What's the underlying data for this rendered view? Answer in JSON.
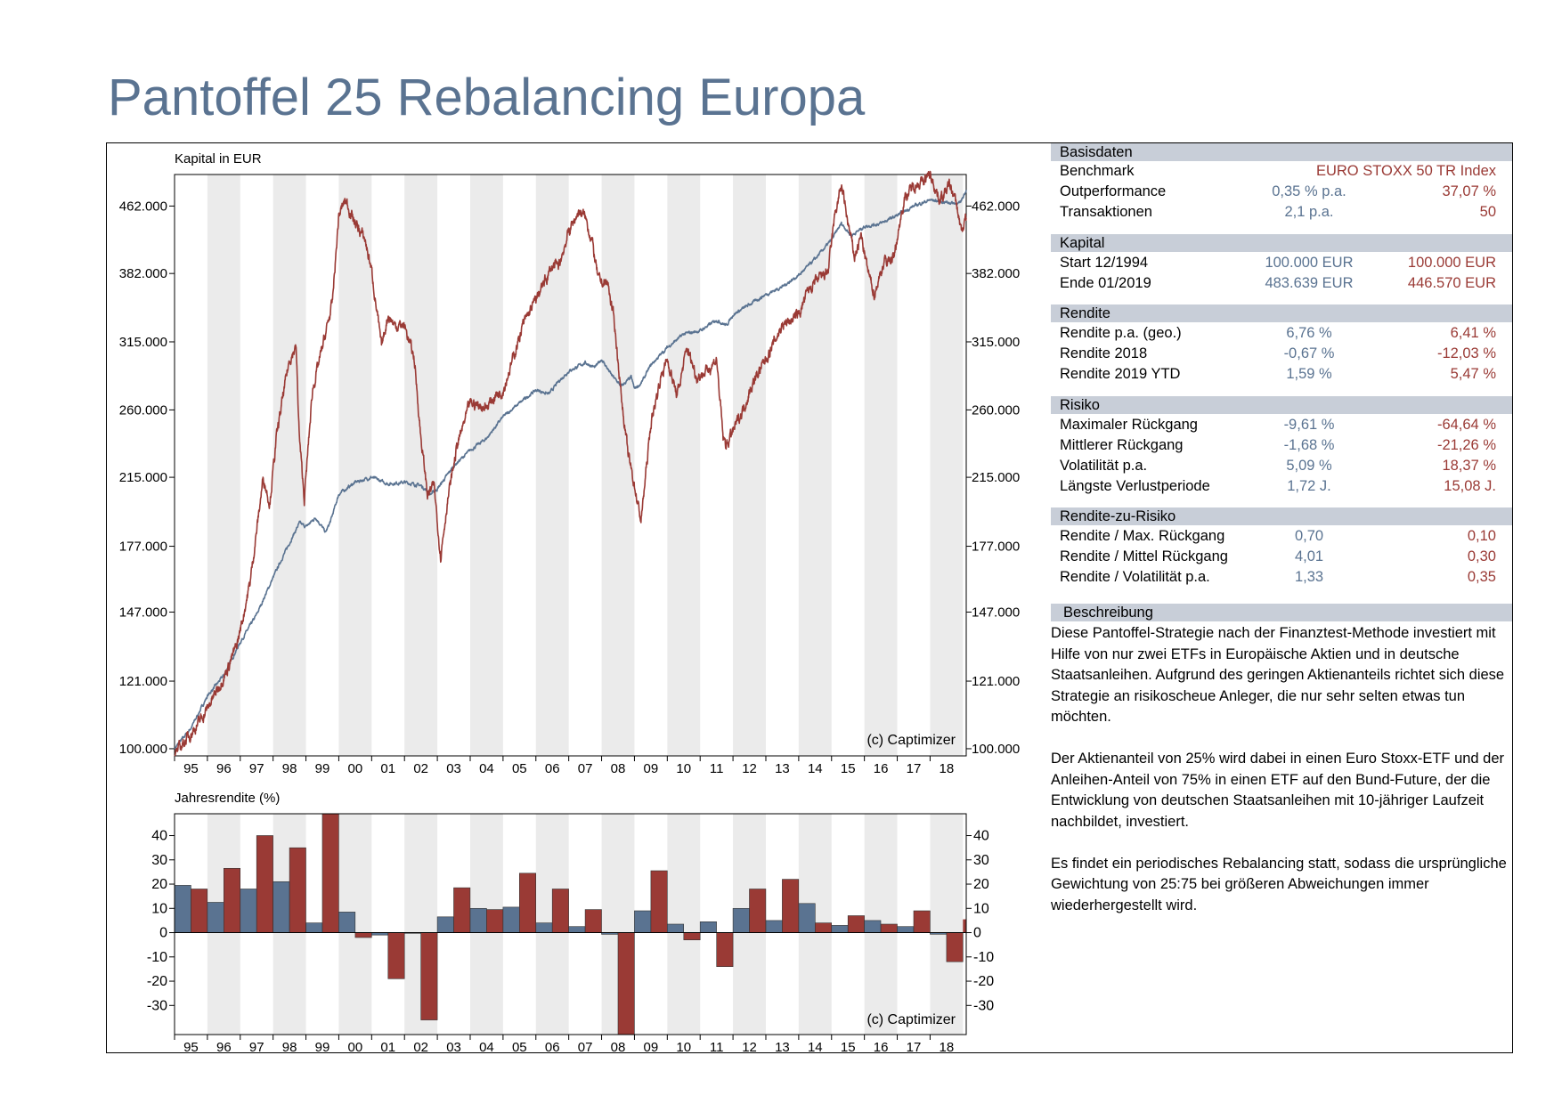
{
  "title": "Pantoffel 25 Rebalancing Europa",
  "colors": {
    "strategy": "#5a7391",
    "benchmark": "#9a3a35",
    "band": "#ebebeb",
    "header": "#c8ced8",
    "title": "#5a7391"
  },
  "panel": {
    "basisdaten": {
      "header": "Basisdaten",
      "benchmark_label": "Benchmark",
      "benchmark_value": "EURO STOXX 50 TR Index",
      "rows": [
        {
          "label": "Outperformance",
          "v1": "0,35 % p.a.",
          "v2": "37,07 %"
        },
        {
          "label": "Transaktionen",
          "v1": "2,1 p.a.",
          "v2": "50"
        }
      ]
    },
    "kapital": {
      "header": "Kapital",
      "rows": [
        {
          "label": "Start  12/1994",
          "v1": "100.000 EUR",
          "v2": "100.000 EUR"
        },
        {
          "label": "Ende 01/2019",
          "v1": "483.639 EUR",
          "v2": "446.570 EUR"
        }
      ]
    },
    "rendite": {
      "header": "Rendite",
      "rows": [
        {
          "label": "Rendite p.a. (geo.)",
          "v1": "6,76 %",
          "v2": "6,41 %"
        },
        {
          "label": "Rendite 2018",
          "v1": "-0,67 %",
          "v2": "-12,03 %"
        },
        {
          "label": "Rendite 2019 YTD",
          "v1": "1,59 %",
          "v2": "5,47 %"
        }
      ]
    },
    "risiko": {
      "header": "Risiko",
      "rows": [
        {
          "label": "Maximaler Rückgang",
          "v1": "-9,61 %",
          "v2": "-64,64 %"
        },
        {
          "label": "Mittlerer Rückgang",
          "v1": "-1,68 %",
          "v2": "-21,26 %"
        },
        {
          "label": "Volatilität p.a.",
          "v1": "5,09 %",
          "v2": "18,37 %"
        },
        {
          "label": "Längste Verlustperiode",
          "v1": "1,72 J.",
          "v2": "15,08 J."
        }
      ]
    },
    "rzr": {
      "header": "Rendite-zu-Risiko",
      "rows": [
        {
          "label": "Rendite / Max. Rückgang",
          "v1": "0,70",
          "v2": "0,10"
        },
        {
          "label": "Rendite / Mittel Rückgang",
          "v1": "4,01",
          "v2": "0,30"
        },
        {
          "label": "Rendite / Volatilität p.a.",
          "v1": "1,33",
          "v2": "0,35"
        }
      ]
    },
    "beschreibung": {
      "header": "Beschreibung",
      "paragraphs": [
        "Diese Pantoffel-Strategie nach der Finanztest-Methode investiert mit Hilfe von nur zwei ETFs in Europäische Aktien und in deutsche Staatsanleihen. Aufgrund des geringen Aktienanteils richtet sich diese Strategie an risikoscheue Anleger, die nur sehr selten etwas tun möchten.",
        "Der Aktienanteil von 25% wird dabei in einen Euro Stoxx-ETF und der Anleihen-Anteil von 75% in einen ETF auf den Bund-Future, der die Entwicklung von deutschen Staatsanleihen mit 10-jähriger Laufzeit nachbildet, investiert.",
        "Es findet ein periodisches Rebalancing statt, sodass die ursprüngliche Gewichtung von 25:75 bei größeren Abweichungen immer wiederhergestellt wird."
      ]
    }
  },
  "chart_data": [
    {
      "type": "line",
      "ylabel": "Kapital in EUR",
      "watermark": "(c) Captimizer",
      "x_tick_labels": [
        "95",
        "96",
        "97",
        "98",
        "99",
        "00",
        "01",
        "02",
        "03",
        "04",
        "05",
        "06",
        "07",
        "08",
        "09",
        "10",
        "11",
        "12",
        "13",
        "14",
        "15",
        "16",
        "17",
        "18"
      ],
      "y_tick_values": [
        100000,
        121000,
        147000,
        177000,
        215000,
        260000,
        315000,
        382000,
        462000
      ],
      "y_tick_labels": [
        "100.000",
        "121.000",
        "147.000",
        "177.000",
        "215.000",
        "260.000",
        "315.000",
        "382.000",
        "462.000"
      ],
      "y_scale": "log",
      "xlim": [
        1995.0,
        2019.1
      ],
      "ylim": [
        98000,
        505000
      ],
      "series": [
        {
          "color": "#5a7391",
          "x": [
            1995.0,
            1995.5,
            1996.0,
            1996.5,
            1997.0,
            1997.5,
            1998.0,
            1998.3,
            1998.6,
            1998.8,
            1999.0,
            1999.3,
            1999.6,
            1999.75,
            2000.0,
            2000.5,
            2001.0,
            2001.5,
            2002.0,
            2002.5,
            2002.8,
            2003.0,
            2003.5,
            2004.0,
            2004.5,
            2005.0,
            2005.5,
            2006.0,
            2006.4,
            2006.7,
            2007.0,
            2007.5,
            2007.8,
            2008.0,
            2008.3,
            2008.6,
            2008.9,
            2009.0,
            2009.2,
            2009.5,
            2010.0,
            2010.5,
            2011.0,
            2011.5,
            2011.8,
            2012.0,
            2012.5,
            2013.0,
            2013.5,
            2014.0,
            2014.5,
            2015.0,
            2015.3,
            2015.6,
            2016.0,
            2016.5,
            2017.0,
            2017.5,
            2018.0,
            2018.5,
            2018.9,
            2019.1
          ],
          "y": [
            100000,
            106000,
            116000,
            123000,
            135000,
            146000,
            162000,
            172000,
            182000,
            189000,
            187000,
            192000,
            184000,
            190000,
            205000,
            212000,
            215000,
            211000,
            212000,
            210000,
            205000,
            208000,
            222000,
            232000,
            240000,
            255000,
            265000,
            275000,
            272000,
            282000,
            290000,
            297000,
            293000,
            300000,
            287000,
            278000,
            285000,
            276000,
            280000,
            295000,
            310000,
            322000,
            325000,
            335000,
            330000,
            340000,
            350000,
            360000,
            368000,
            380000,
            398000,
            420000,
            440000,
            425000,
            436000,
            440000,
            450000,
            462000,
            470000,
            467000,
            465000,
            483639
          ]
        },
        {
          "color": "#9a3a35",
          "x": [
            1995.0,
            1995.3,
            1995.7,
            1996.0,
            1996.3,
            1996.6,
            1996.9,
            1997.1,
            1997.3,
            1997.5,
            1997.7,
            1997.9,
            1998.1,
            1998.3,
            1998.5,
            1998.7,
            1998.8,
            1998.95,
            1999.2,
            1999.5,
            1999.8,
            2000.0,
            2000.2,
            2000.5,
            2000.8,
            2001.0,
            2001.3,
            2001.5,
            2001.7,
            2002.0,
            2002.3,
            2002.5,
            2002.7,
            2002.9,
            2003.1,
            2003.3,
            2003.6,
            2004.0,
            2004.5,
            2004.8,
            2005.0,
            2005.3,
            2005.6,
            2006.0,
            2006.3,
            2006.5,
            2006.7,
            2007.0,
            2007.3,
            2007.5,
            2007.7,
            2007.9,
            2008.2,
            2008.4,
            2008.6,
            2008.8,
            2009.0,
            2009.2,
            2009.5,
            2009.8,
            2010.0,
            2010.3,
            2010.6,
            2010.9,
            2011.2,
            2011.5,
            2011.7,
            2011.8,
            2012.0,
            2012.3,
            2012.6,
            2013.0,
            2013.5,
            2014.0,
            2014.3,
            2014.6,
            2014.9,
            2015.1,
            2015.3,
            2015.5,
            2015.7,
            2015.9,
            2016.1,
            2016.3,
            2016.6,
            2016.9,
            2017.2,
            2017.5,
            2017.8,
            2018.0,
            2018.3,
            2018.6,
            2018.8,
            2018.95,
            2019.1
          ],
          "y": [
            98000,
            102000,
            107000,
            112000,
            118000,
            125000,
            134000,
            146000,
            160000,
            185000,
            215000,
            200000,
            240000,
            270000,
            300000,
            310000,
            240000,
            202000,
            275000,
            310000,
            350000,
            450000,
            470000,
            440000,
            420000,
            385000,
            310000,
            340000,
            330000,
            330000,
            300000,
            240000,
            205000,
            210000,
            172000,
            200000,
            235000,
            265000,
            262000,
            272000,
            275000,
            300000,
            330000,
            355000,
            375000,
            390000,
            390000,
            430000,
            455000,
            448000,
            420000,
            375000,
            370000,
            330000,
            270000,
            230000,
            210000,
            190000,
            250000,
            285000,
            300000,
            270000,
            310000,
            285000,
            290000,
            300000,
            240000,
            235000,
            245000,
            260000,
            280000,
            300000,
            330000,
            340000,
            365000,
            375000,
            385000,
            450000,
            490000,
            440000,
            400000,
            425000,
            385000,
            360000,
            395000,
            400000,
            470000,
            490000,
            495000,
            505000,
            470000,
            490000,
            465000,
            430000,
            446570
          ]
        }
      ]
    },
    {
      "type": "bar",
      "ylabel": "Jahresrendite (%)",
      "watermark": "(c) Captimizer",
      "categories": [
        "95",
        "96",
        "97",
        "98",
        "99",
        "00",
        "01",
        "02",
        "03",
        "04",
        "05",
        "06",
        "07",
        "08",
        "09",
        "10",
        "11",
        "12",
        "13",
        "14",
        "15",
        "16",
        "17",
        "18"
      ],
      "y_tick_values": [
        -30,
        -20,
        -10,
        0,
        10,
        20,
        30,
        40
      ],
      "ylim": [
        -42,
        49
      ],
      "series": [
        {
          "color": "#5a7391",
          "values": [
            19.5,
            12.5,
            18,
            21,
            4,
            8.5,
            -1,
            0,
            6.5,
            10,
            10.5,
            4,
            2.5,
            -0.7,
            9,
            3.5,
            4.5,
            10,
            5,
            12,
            3,
            5,
            2.5,
            -0.67
          ]
        },
        {
          "color": "#9a3a35",
          "values": [
            18,
            26.5,
            40,
            35,
            49,
            -2,
            -19,
            -36,
            18.5,
            9.5,
            24.5,
            18,
            9.5,
            -42,
            25.5,
            -3,
            -14,
            18,
            22,
            4,
            7,
            3.5,
            9,
            -12
          ]
        }
      ],
      "last_partial_bar": {
        "color": "#9a3a35",
        "value": 5.5
      }
    }
  ]
}
